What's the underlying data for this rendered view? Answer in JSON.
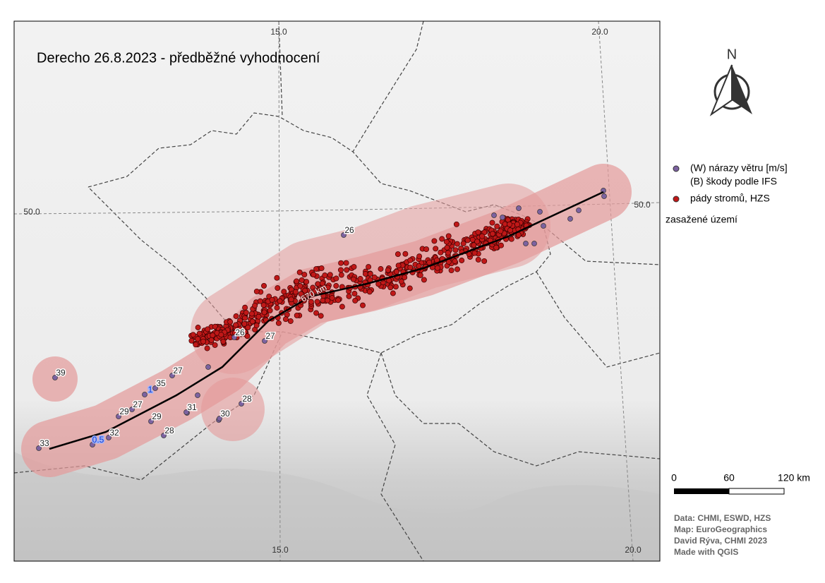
{
  "map": {
    "title": "Derecho 26.8.2023 - předběžné vyhodnocení",
    "north": "N",
    "grid_labels": [
      "15.0",
      "20.0",
      "15.0",
      "20.0",
      "50.0",
      "50.0"
    ],
    "track_label": "670 km",
    "wind_labels": [
      "26",
      "26",
      "27",
      "27",
      "35",
      "1",
      "27",
      "29",
      "29",
      "31",
      "30",
      "28",
      "28",
      "32",
      "0.5",
      "33",
      "39"
    ]
  },
  "legend": {
    "items": [
      "(W) nárazy větru [m/s]",
      "(B) škody podle IFS",
      "pády stromů, HZS",
      "zasažené území"
    ]
  },
  "scale": {
    "labels": [
      "0",
      "60",
      "120 km"
    ]
  },
  "credits": [
    "Data: CHMI, ESWD, HZS",
    "Map: EuroGeographics",
    "David Rýva, CHMI 2023",
    "Made with QGIS"
  ]
}
